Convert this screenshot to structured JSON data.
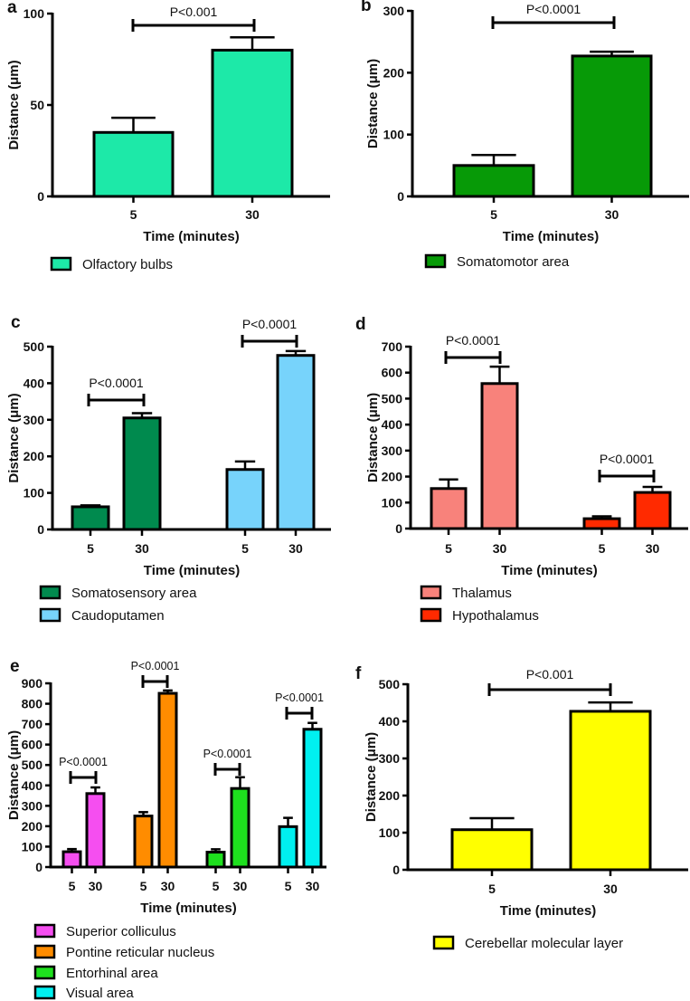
{
  "chart_data": [
    {
      "panel": "a",
      "type": "bar",
      "xlabel": "Time (minutes)",
      "ylabel": "Distance (μm)",
      "ylim": [
        0,
        100
      ],
      "yticks": [
        "0",
        "50",
        "100"
      ],
      "categories": [
        "5",
        "30"
      ],
      "series": [
        {
          "name": "Olfactory bulbs",
          "color": "#1de9a8",
          "values": [
            35,
            80
          ],
          "errors": [
            8,
            7
          ],
          "p_value": "P<0.001"
        }
      ]
    },
    {
      "panel": "b",
      "type": "bar",
      "xlabel": "Time (minutes)",
      "ylabel": "Distance (μm)",
      "ylim": [
        0,
        300
      ],
      "yticks": [
        "0",
        "100",
        "200",
        "300"
      ],
      "categories": [
        "5",
        "30"
      ],
      "series": [
        {
          "name": "Somatomotor area",
          "color": "#079a07",
          "values": [
            50,
            227
          ],
          "errors": [
            17,
            7
          ],
          "p_value": "P<0.0001"
        }
      ]
    },
    {
      "panel": "c",
      "type": "bar",
      "xlabel": "Time (minutes)",
      "ylabel": "Distance (μm)",
      "ylim": [
        0,
        500
      ],
      "yticks": [
        "0",
        "100",
        "200",
        "300",
        "400",
        "500"
      ],
      "categories": [
        "5",
        "30"
      ],
      "series": [
        {
          "name": "Somatosensory area",
          "color": "#008a4e",
          "values": [
            62,
            305
          ],
          "errors": [
            4,
            13
          ],
          "p_value": "P<0.0001"
        },
        {
          "name": "Caudoputamen",
          "color": "#77d3fb",
          "values": [
            164,
            476
          ],
          "errors": [
            22,
            12
          ],
          "p_value": "P<0.0001"
        }
      ]
    },
    {
      "panel": "d",
      "type": "bar",
      "xlabel": "Time (minutes)",
      "ylabel": "Distance (μm)",
      "ylim": [
        0,
        700
      ],
      "yticks": [
        "0",
        "100",
        "200",
        "300",
        "400",
        "500",
        "600",
        "700"
      ],
      "categories": [
        "5",
        "30"
      ],
      "series": [
        {
          "name": "Thalamus",
          "color": "#f8827b",
          "values": [
            154,
            558
          ],
          "errors": [
            35,
            65
          ],
          "p_value": "P<0.0001"
        },
        {
          "name": "Hypothalamus",
          "color": "#ff2a00",
          "values": [
            38,
            139
          ],
          "errors": [
            9,
            21
          ],
          "p_value": "P<0.0001"
        }
      ]
    },
    {
      "panel": "e",
      "type": "bar",
      "xlabel": "Time (minutes)",
      "ylabel": "Distance (μm)",
      "ylim": [
        0,
        900
      ],
      "yticks": [
        "0",
        "100",
        "200",
        "300",
        "400",
        "500",
        "600",
        "700",
        "800",
        "900"
      ],
      "categories": [
        "5",
        "30"
      ],
      "series": [
        {
          "name": "Superior colliculus",
          "color": "#f54ef0",
          "values": [
            75,
            360
          ],
          "errors": [
            13,
            30
          ],
          "p_value": "P<0.0001"
        },
        {
          "name": "Pontine reticular nucleus",
          "color": "#ff8c00",
          "values": [
            250,
            851
          ],
          "errors": [
            19,
            14
          ],
          "p_value": "P<0.0001"
        },
        {
          "name": "Entorhinal area",
          "color": "#1ee01e",
          "values": [
            73,
            385
          ],
          "errors": [
            14,
            55
          ],
          "p_value": "P<0.0001"
        },
        {
          "name": "Visual area",
          "color": "#00f0f0",
          "values": [
            198,
            675
          ],
          "errors": [
            43,
            31
          ],
          "p_value": "P<0.0001"
        }
      ]
    },
    {
      "panel": "f",
      "type": "bar",
      "xlabel": "Time (minutes)",
      "ylabel": "Distance (μm)",
      "ylim": [
        0,
        500
      ],
      "yticks": [
        "0",
        "100",
        "200",
        "300",
        "400",
        "500"
      ],
      "categories": [
        "5",
        "30"
      ],
      "series": [
        {
          "name": "Cerebellar molecular layer",
          "color": "#ffff00",
          "values": [
            108,
            427
          ],
          "errors": [
            31,
            24
          ],
          "p_value": "P<0.001"
        }
      ]
    }
  ]
}
